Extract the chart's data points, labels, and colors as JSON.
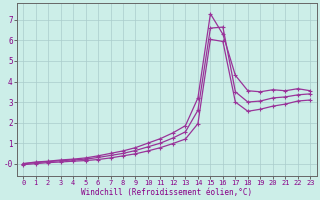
{
  "bg_color": "#cceee8",
  "grid_color": "#aacccc",
  "line_color": "#993399",
  "xlabel": "Windchill (Refroidissement éolien,°C)",
  "ylabel_ticks": [
    "-0",
    "1",
    "2",
    "3",
    "4",
    "5",
    "6",
    "7"
  ],
  "ytick_vals": [
    0,
    1,
    2,
    3,
    4,
    5,
    6,
    7
  ],
  "xlim": [
    -0.5,
    23.5
  ],
  "ylim": [
    -0.6,
    7.8
  ],
  "xtick_labels": [
    "0",
    "1",
    "2",
    "3",
    "4",
    "5",
    "6",
    "7",
    "8",
    "9",
    "10",
    "11",
    "12",
    "13",
    "14",
    "15",
    "16",
    "17",
    "18",
    "19",
    "20",
    "21",
    "22",
    "23"
  ],
  "line1_x": [
    0,
    1,
    2,
    3,
    4,
    5,
    6,
    7,
    8,
    9,
    10,
    11,
    12,
    13,
    14,
    15,
    16,
    17,
    18,
    19,
    20,
    21,
    22,
    23
  ],
  "line1_y": [
    0.0,
    0.08,
    0.12,
    0.18,
    0.22,
    0.28,
    0.38,
    0.5,
    0.62,
    0.78,
    1.0,
    1.22,
    1.5,
    1.85,
    3.2,
    7.3,
    6.3,
    4.3,
    3.55,
    3.5,
    3.6,
    3.55,
    3.65,
    3.55
  ],
  "line2_x": [
    0,
    1,
    2,
    3,
    4,
    5,
    6,
    7,
    8,
    9,
    10,
    11,
    12,
    13,
    14,
    15,
    16,
    17,
    18,
    19,
    20,
    21,
    22,
    23
  ],
  "line2_y": [
    0.0,
    0.05,
    0.1,
    0.14,
    0.18,
    0.22,
    0.3,
    0.4,
    0.5,
    0.64,
    0.82,
    1.0,
    1.25,
    1.55,
    2.6,
    6.6,
    6.65,
    3.5,
    3.0,
    3.05,
    3.2,
    3.25,
    3.35,
    3.4
  ],
  "line3_x": [
    0,
    1,
    2,
    3,
    4,
    5,
    6,
    7,
    8,
    9,
    10,
    11,
    12,
    13,
    14,
    15,
    16,
    17,
    18,
    19,
    20,
    21,
    22,
    23
  ],
  "line3_y": [
    -0.05,
    0.0,
    0.05,
    0.08,
    0.12,
    0.15,
    0.2,
    0.28,
    0.38,
    0.48,
    0.62,
    0.78,
    0.98,
    1.2,
    1.95,
    6.05,
    5.95,
    3.0,
    2.55,
    2.65,
    2.8,
    2.9,
    3.05,
    3.1
  ],
  "marker": "+",
  "marker_size": 3,
  "linewidth": 0.9,
  "font_color": "#880088",
  "font_family": "monospace",
  "font_size_tick": 5.0,
  "font_size_label": 5.5
}
